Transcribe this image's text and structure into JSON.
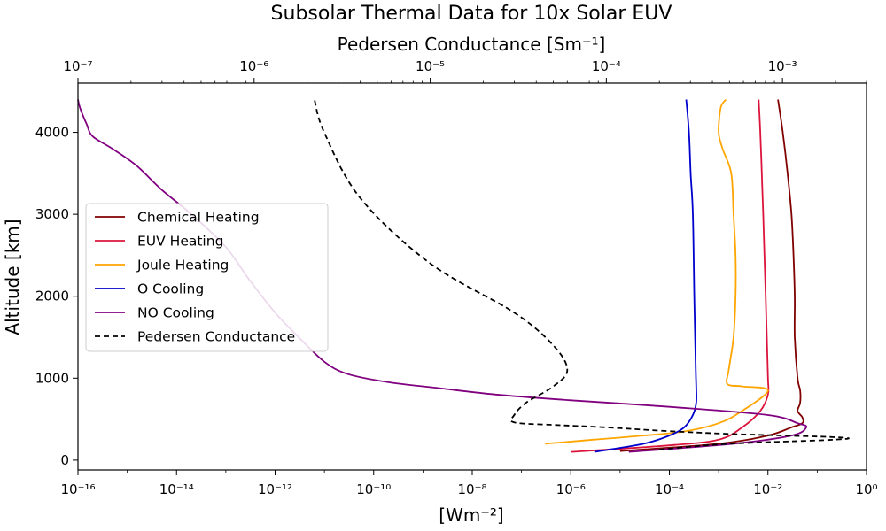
{
  "chart_data": {
    "type": "line",
    "title": "Subsolar Thermal Data for 10x Solar EUV",
    "xlabel": "[Wm⁻²]",
    "ylabel": "Altitude [km]",
    "x_scale": "log",
    "xlim": [
      1e-16,
      1
    ],
    "ylim": [
      -120,
      4600
    ],
    "x_ticks": [
      "10⁻¹⁶",
      "10⁻¹⁴",
      "10⁻¹²",
      "10⁻¹⁰",
      "10⁻⁸",
      "10⁻⁶",
      "10⁻⁴",
      "10⁻²",
      "10⁰"
    ],
    "y_ticks": [
      "0",
      "1000",
      "2000",
      "3000",
      "4000"
    ],
    "top_axis": {
      "label": "Pedersen Conductance [Sm⁻¹]",
      "scale": "log",
      "xlim": [
        1e-07,
        0.003
      ],
      "ticks": [
        "10⁻⁷",
        "10⁻⁶",
        "10⁻⁵",
        "10⁻⁴",
        "10⁻³"
      ]
    },
    "legend_position": "center-left",
    "series": [
      {
        "name": "Chemical Heating",
        "color": "#800000",
        "dashed": false,
        "points": [
          [
            1e-05,
            110
          ],
          [
            0.001,
            200
          ],
          [
            0.01,
            300
          ],
          [
            0.03,
            400
          ],
          [
            0.05,
            450
          ],
          [
            0.05,
            520
          ],
          [
            0.04,
            600
          ],
          [
            0.045,
            700
          ],
          [
            0.045,
            850
          ],
          [
            0.04,
            1000
          ],
          [
            0.035,
            1500
          ],
          [
            0.035,
            2000
          ],
          [
            0.033,
            2500
          ],
          [
            0.03,
            3000
          ],
          [
            0.025,
            3500
          ],
          [
            0.02,
            4000
          ],
          [
            0.016,
            4400
          ]
        ]
      },
      {
        "name": "EUV Heating",
        "color": "#dc143c",
        "dashed": false,
        "points": [
          [
            1e-06,
            100
          ],
          [
            0.0001,
            180
          ],
          [
            0.001,
            250
          ],
          [
            0.003,
            400
          ],
          [
            0.007,
            600
          ],
          [
            0.01,
            800
          ],
          [
            0.01,
            1000
          ],
          [
            0.0095,
            1500
          ],
          [
            0.009,
            2000
          ],
          [
            0.0085,
            2500
          ],
          [
            0.008,
            3000
          ],
          [
            0.0075,
            3500
          ],
          [
            0.007,
            4000
          ],
          [
            0.0065,
            4400
          ]
        ]
      },
      {
        "name": "Joule Heating",
        "color": "#ffa500",
        "dashed": false,
        "points": [
          [
            3e-07,
            200
          ],
          [
            3e-06,
            250
          ],
          [
            3e-05,
            300
          ],
          [
            0.0002,
            350
          ],
          [
            0.001,
            450
          ],
          [
            0.003,
            600
          ],
          [
            0.01,
            850
          ],
          [
            0.003,
            900
          ],
          [
            0.0015,
            930
          ],
          [
            0.0016,
            1100
          ],
          [
            0.002,
            1500
          ],
          [
            0.0022,
            2000
          ],
          [
            0.0022,
            2500
          ],
          [
            0.002,
            3000
          ],
          [
            0.0018,
            3500
          ],
          [
            0.0012,
            3800
          ],
          [
            0.001,
            4000
          ],
          [
            0.0011,
            4300
          ],
          [
            0.0014,
            4400
          ]
        ]
      },
      {
        "name": "O Cooling",
        "color": "#0000cd",
        "dashed": false,
        "points": [
          [
            3e-06,
            100
          ],
          [
            3e-05,
            200
          ],
          [
            0.0001,
            300
          ],
          [
            0.0002,
            400
          ],
          [
            0.0003,
            550
          ],
          [
            0.00035,
            700
          ],
          [
            0.00035,
            900
          ],
          [
            0.00034,
            1200
          ],
          [
            0.00032,
            2000
          ],
          [
            0.0003,
            3000
          ],
          [
            0.00027,
            3500
          ],
          [
            0.00025,
            4000
          ],
          [
            0.00022,
            4400
          ]
        ]
      },
      {
        "name": "NO Cooling",
        "color": "#800080",
        "dashed": false,
        "points": [
          [
            1.5e-05,
            100
          ],
          [
            0.002,
            200
          ],
          [
            0.03,
            300
          ],
          [
            0.06,
            400
          ],
          [
            0.04,
            450
          ],
          [
            0.01,
            550
          ],
          [
            0.0001,
            650
          ],
          [
            1e-06,
            730
          ],
          [
            3e-08,
            800
          ],
          [
            2e-09,
            880
          ],
          [
            2e-10,
            950
          ],
          [
            3e-11,
            1050
          ],
          [
            1e-11,
            1200
          ],
          [
            3e-12,
            1500
          ],
          [
            1e-12,
            1800
          ],
          [
            3e-13,
            2200
          ],
          [
            1e-13,
            2600
          ],
          [
            2e-14,
            3000
          ],
          [
            5e-15,
            3300
          ],
          [
            1.5e-15,
            3600
          ],
          [
            5e-16,
            3800
          ],
          [
            2e-16,
            3950
          ],
          [
            1.5e-16,
            4100
          ],
          [
            1.1e-16,
            4300
          ],
          [
            1e-16,
            4400
          ]
        ]
      },
      {
        "name": "Pedersen Conductance",
        "color": "#000000",
        "dashed": true,
        "conductance_axis": true,
        "points": [
          [
            0.0002,
            130
          ],
          [
            0.0005,
            200
          ],
          [
            0.002,
            250
          ],
          [
            0.002,
            280
          ],
          [
            0.0005,
            320
          ],
          [
            0.0002,
            360
          ],
          [
            0.0001,
            400
          ],
          [
            5e-05,
            430
          ],
          [
            3e-05,
            460
          ],
          [
            3e-05,
            550
          ],
          [
            3.5e-05,
            700
          ],
          [
            5e-05,
            900
          ],
          [
            6e-05,
            1100
          ],
          [
            5e-05,
            1400
          ],
          [
            3e-05,
            1800
          ],
          [
            1e-05,
            2400
          ],
          [
            4e-06,
            3200
          ],
          [
            2.5e-06,
            4000
          ],
          [
            2.2e-06,
            4400
          ]
        ]
      }
    ]
  }
}
